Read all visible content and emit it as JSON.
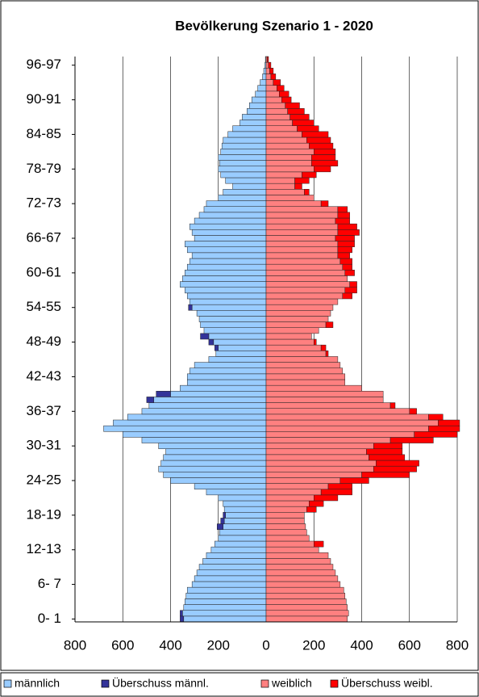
{
  "chart_data": {
    "type": "pyramid",
    "title": "Bevölkerung Szenario 1 - 2020",
    "categories": [
      "0- 1",
      null,
      null,
      null,
      null,
      null,
      "6- 7",
      null,
      null,
      null,
      null,
      null,
      "12-13",
      null,
      null,
      null,
      null,
      null,
      "18-19",
      null,
      null,
      null,
      null,
      null,
      "24-25",
      null,
      null,
      null,
      null,
      null,
      "30-31",
      null,
      null,
      null,
      null,
      null,
      "36-37",
      null,
      null,
      null,
      null,
      null,
      "42-43",
      null,
      null,
      null,
      null,
      null,
      "48-49",
      null,
      null,
      null,
      null,
      null,
      "54-55",
      null,
      null,
      null,
      null,
      null,
      "60-61",
      null,
      null,
      null,
      null,
      null,
      "66-67",
      null,
      null,
      null,
      null,
      null,
      "72-73",
      null,
      null,
      null,
      null,
      null,
      "78-79",
      null,
      null,
      null,
      null,
      null,
      "84-85",
      null,
      null,
      null,
      null,
      null,
      "90-91",
      null,
      null,
      null,
      null,
      null,
      "96-97",
      null
    ],
    "series": [
      {
        "name": "männlich",
        "color": "#99ccff",
        "values": [
          -345,
          -350,
          -345,
          -340,
          -335,
          -330,
          -310,
          -300,
          -290,
          -280,
          -265,
          -250,
          -230,
          -215,
          -200,
          -195,
          -180,
          -175,
          -170,
          -175,
          -180,
          -200,
          -250,
          -300,
          -400,
          -430,
          -450,
          -440,
          -430,
          -420,
          -450,
          -520,
          -600,
          -680,
          -640,
          -580,
          -520,
          -490,
          -470,
          -400,
          -360,
          -330,
          -330,
          -320,
          -300,
          -240,
          -210,
          -200,
          -220,
          -240,
          -260,
          -275,
          -280,
          -290,
          -310,
          -320,
          -330,
          -340,
          -360,
          -350,
          -340,
          -330,
          -320,
          -310,
          -330,
          -340,
          -300,
          -310,
          -320,
          -300,
          -280,
          -260,
          -250,
          -200,
          -180,
          -140,
          -170,
          -190,
          -200,
          -195,
          -200,
          -190,
          -185,
          -180,
          -160,
          -140,
          -110,
          -100,
          -80,
          -70,
          -60,
          -45,
          -35,
          -25,
          -15,
          -10,
          -5,
          -3
        ]
      },
      {
        "name": "Überschuss männl.",
        "color": "#333399",
        "values": [
          -15,
          -10,
          0,
          0,
          0,
          0,
          0,
          0,
          0,
          0,
          0,
          0,
          0,
          0,
          0,
          0,
          -25,
          -15,
          -10,
          0,
          0,
          0,
          0,
          0,
          0,
          0,
          0,
          0,
          0,
          0,
          0,
          0,
          0,
          0,
          0,
          0,
          0,
          0,
          -30,
          -60,
          0,
          0,
          0,
          0,
          0,
          0,
          0,
          -15,
          -20,
          -35,
          0,
          0,
          0,
          0,
          -15,
          0,
          0,
          0,
          0,
          0,
          0,
          0,
          0,
          0,
          0,
          0,
          0,
          0,
          0,
          0,
          0,
          0,
          0,
          0,
          0,
          0,
          0,
          0,
          0,
          0,
          0,
          0,
          0,
          0,
          0,
          0,
          0,
          0,
          0,
          0,
          0,
          0,
          0,
          0,
          0,
          0,
          0,
          0
        ]
      },
      {
        "name": "weiblich",
        "color": "#ff8080",
        "values": [
          340,
          345,
          340,
          335,
          330,
          325,
          310,
          300,
          290,
          280,
          270,
          260,
          220,
          200,
          180,
          170,
          165,
          160,
          160,
          170,
          180,
          200,
          230,
          260,
          310,
          400,
          450,
          460,
          430,
          420,
          450,
          520,
          620,
          680,
          720,
          680,
          600,
          520,
          490,
          490,
          400,
          330,
          330,
          320,
          310,
          300,
          250,
          230,
          200,
          190,
          220,
          250,
          260,
          270,
          280,
          300,
          320,
          330,
          350,
          340,
          330,
          320,
          310,
          300,
          300,
          300,
          290,
          300,
          300,
          290,
          300,
          300,
          230,
          200,
          160,
          120,
          120,
          150,
          200,
          190,
          190,
          200,
          180,
          170,
          150,
          130,
          110,
          100,
          90,
          80,
          65,
          55,
          45,
          30,
          20,
          15,
          10,
          5
        ]
      },
      {
        "name": "Überschuss weibl.",
        "color": "#ff0000",
        "values": [
          0,
          0,
          0,
          0,
          0,
          0,
          0,
          0,
          0,
          0,
          0,
          0,
          0,
          40,
          0,
          0,
          0,
          0,
          0,
          40,
          60,
          100,
          130,
          100,
          120,
          200,
          180,
          180,
          150,
          150,
          120,
          180,
          180,
          130,
          90,
          60,
          30,
          20,
          0,
          0,
          0,
          0,
          0,
          0,
          0,
          0,
          10,
          20,
          10,
          0,
          0,
          30,
          0,
          0,
          0,
          0,
          40,
          50,
          30,
          0,
          40,
          40,
          50,
          50,
          60,
          70,
          80,
          90,
          80,
          60,
          50,
          40,
          30,
          0,
          20,
          30,
          60,
          60,
          70,
          110,
          100,
          90,
          100,
          100,
          110,
          90,
          90,
          80,
          70,
          60,
          40,
          40,
          30,
          30,
          20,
          15,
          10,
          5
        ]
      }
    ],
    "xlim": [
      -800,
      800
    ],
    "xticks": [
      {
        "value": -800,
        "label": "800"
      },
      {
        "value": -600,
        "label": "600"
      },
      {
        "value": -400,
        "label": "400"
      },
      {
        "value": -200,
        "label": "200"
      },
      0,
      200,
      400,
      600,
      800
    ],
    "grid": true
  }
}
